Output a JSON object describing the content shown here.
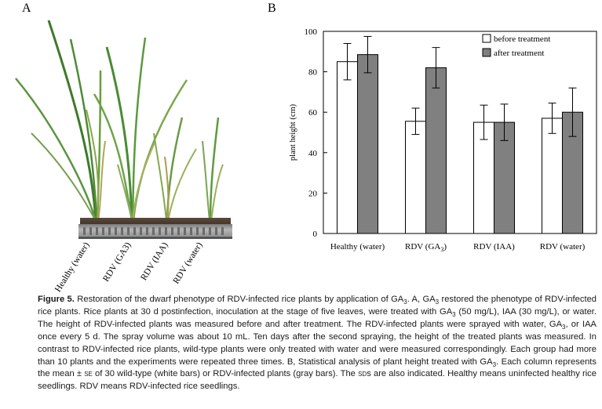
{
  "panels": {
    "a_label": "A",
    "b_label": "B"
  },
  "photo": {
    "labels": [
      "Healthy (water)",
      "RDV (GA3)",
      "RDV (IAA)",
      "RDV (water)"
    ]
  },
  "chart_data": {
    "type": "bar",
    "categories": [
      "Healthy (water)",
      "RDV (GA3)",
      "RDV (IAA)",
      "RDV (water)"
    ],
    "category_display": [
      {
        "main": "Healthy (water)",
        "sub": ""
      },
      {
        "main": "RDV (GA",
        "sub": "3",
        "tail": ")"
      },
      {
        "main": "RDV (IAA)",
        "sub": ""
      },
      {
        "main": "RDV (water)",
        "sub": ""
      }
    ],
    "series": [
      {
        "name": "before treatment",
        "color": "#ffffff",
        "values": [
          85,
          55.5,
          55,
          57
        ],
        "errors": [
          9,
          6.5,
          8.5,
          7.5
        ]
      },
      {
        "name": "after treatment",
        "color": "#808080",
        "values": [
          88.5,
          82,
          55,
          60
        ],
        "errors": [
          9,
          10,
          9,
          12
        ]
      }
    ],
    "ylabel": "plant height (cm)",
    "ylim": [
      0,
      100
    ],
    "yticks": [
      0,
      20,
      40,
      60,
      80,
      100
    ],
    "legend_position": "top-right",
    "grid": false
  },
  "caption": {
    "label": "Figure 5.",
    "t1": "Restoration of the dwarf phenotype of RDV-infected rice plants by application of GA",
    "t2": ". A, GA",
    "t3": " restored the phenotype of RDV-infected rice plants. Rice plants at 30 d postinfection, inoculation at the stage of five leaves, were treated with GA",
    "t4": " (50 mg/L), IAA (30 mg/L), or water. The height of RDV-infected plants was measured before and after treatment. The RDV-infected plants were sprayed with water, GA",
    "t5": ", or IAA once every 5 d. The spray volume was about 10 mL. Ten days after the second spraying, the height of the treated plants was measured. In contrast to RDV-infected rice plants, wild-type plants were only treated with water and were measured correspondingly. Each group had more than 10 plants and the experiments were repeated three times. B, Statistical analysis of plant height treated with GA",
    "t6": ". Each column represents the mean ± ",
    "se": "se",
    "t7": " of 30 wild-type (white bars) or RDV-infected plants (gray bars). The ",
    "sds": "sd",
    "t8": "s are also indicated. Healthy means uninfected healthy rice seedlings. RDV means RDV-infected rice seedlings.",
    "sub3": "3"
  }
}
